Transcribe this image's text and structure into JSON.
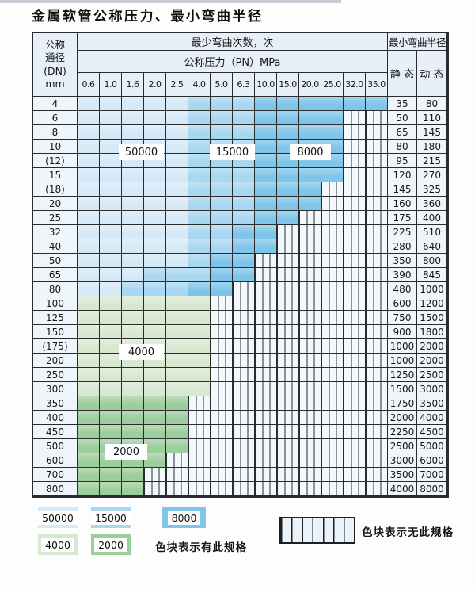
{
  "title": "金属软管公称压力、最小弯曲半径",
  "table": {
    "header": {
      "dn_lines": [
        "公称",
        "通径",
        "(DN)",
        "mm"
      ],
      "cycles": "最少弯曲次数，次",
      "radius": "最小弯曲半径",
      "pn": "公称压力（PN）MPa",
      "static": "静 态",
      "dynamic": "动 态",
      "pressures": [
        "0.6",
        "1.0",
        "1.6",
        "2.0",
        "2.5",
        "4.0",
        "5.0",
        "6.3",
        "10.0",
        "15.0",
        "20.0",
        "25.0",
        "32.0",
        "35.0"
      ]
    },
    "rows": [
      {
        "dn": "4",
        "spec": [
          {
            "cycles": "50000",
            "n": 5
          },
          {
            "cycles": "15000",
            "n": 3
          },
          {
            "cycles": "8000",
            "n": 6
          }
        ],
        "static": "35",
        "dynamic": "80"
      },
      {
        "dn": "6",
        "spec": [
          {
            "cycles": "50000",
            "n": 5
          },
          {
            "cycles": "15000",
            "n": 3
          },
          {
            "cycles": "8000",
            "n": 4
          }
        ],
        "static": "50",
        "dynamic": "110"
      },
      {
        "dn": "8",
        "spec": [
          {
            "cycles": "50000",
            "n": 5
          },
          {
            "cycles": "15000",
            "n": 3
          },
          {
            "cycles": "8000",
            "n": 4
          }
        ],
        "static": "65",
        "dynamic": "145"
      },
      {
        "dn": "10",
        "spec": [
          {
            "cycles": "50000",
            "n": 5
          },
          {
            "cycles": "15000",
            "n": 3
          },
          {
            "cycles": "8000",
            "n": 4
          }
        ],
        "static": "80",
        "dynamic": "180"
      },
      {
        "dn": "(12)",
        "spec": [
          {
            "cycles": "50000",
            "n": 5
          },
          {
            "cycles": "15000",
            "n": 3
          },
          {
            "cycles": "8000",
            "n": 4
          }
        ],
        "static": "95",
        "dynamic": "215"
      },
      {
        "dn": "15",
        "spec": [
          {
            "cycles": "50000",
            "n": 5
          },
          {
            "cycles": "15000",
            "n": 3
          },
          {
            "cycles": "8000",
            "n": 4
          }
        ],
        "static": "120",
        "dynamic": "270"
      },
      {
        "dn": "(18)",
        "spec": [
          {
            "cycles": "50000",
            "n": 5
          },
          {
            "cycles": "15000",
            "n": 3
          },
          {
            "cycles": "8000",
            "n": 3
          }
        ],
        "static": "145",
        "dynamic": "325"
      },
      {
        "dn": "20",
        "spec": [
          {
            "cycles": "50000",
            "n": 5
          },
          {
            "cycles": "15000",
            "n": 3
          },
          {
            "cycles": "8000",
            "n": 3
          }
        ],
        "static": "160",
        "dynamic": "360"
      },
      {
        "dn": "25",
        "spec": [
          {
            "cycles": "50000",
            "n": 5
          },
          {
            "cycles": "15000",
            "n": 3
          },
          {
            "cycles": "8000",
            "n": 2
          }
        ],
        "static": "175",
        "dynamic": "400"
      },
      {
        "dn": "32",
        "spec": [
          {
            "cycles": "50000",
            "n": 5
          },
          {
            "cycles": "15000",
            "n": 2
          },
          {
            "cycles": "8000",
            "n": 2
          }
        ],
        "static": "225",
        "dynamic": "510"
      },
      {
        "dn": "40",
        "spec": [
          {
            "cycles": "50000",
            "n": 5
          },
          {
            "cycles": "15000",
            "n": 2
          },
          {
            "cycles": "8000",
            "n": 2
          }
        ],
        "static": "280",
        "dynamic": "640"
      },
      {
        "dn": "50",
        "spec": [
          {
            "cycles": "50000",
            "n": 5
          },
          {
            "cycles": "15000",
            "n": 1
          },
          {
            "cycles": "8000",
            "n": 2
          }
        ],
        "static": "350",
        "dynamic": "800"
      },
      {
        "dn": "65",
        "spec": [
          {
            "cycles": "50000",
            "n": 3
          },
          {
            "cycles": "15000",
            "n": 3
          },
          {
            "cycles": "8000",
            "n": 2
          }
        ],
        "static": "390",
        "dynamic": "845"
      },
      {
        "dn": "80",
        "spec": [
          {
            "cycles": "50000",
            "n": 2
          },
          {
            "cycles": "15000",
            "n": 3
          },
          {
            "cycles": "8000",
            "n": 2
          }
        ],
        "static": "480",
        "dynamic": "1000"
      },
      {
        "dn": "100",
        "spec": [
          {
            "cycles": "4000",
            "n": 6
          }
        ],
        "static": "600",
        "dynamic": "1200"
      },
      {
        "dn": "125",
        "spec": [
          {
            "cycles": "4000",
            "n": 6
          }
        ],
        "static": "750",
        "dynamic": "1500"
      },
      {
        "dn": "150",
        "spec": [
          {
            "cycles": "4000",
            "n": 6
          }
        ],
        "static": "900",
        "dynamic": "1800"
      },
      {
        "dn": "(175)",
        "spec": [
          {
            "cycles": "4000",
            "n": 6
          }
        ],
        "static": "1000",
        "dynamic": "2000"
      },
      {
        "dn": "200",
        "spec": [
          {
            "cycles": "4000",
            "n": 6
          }
        ],
        "static": "1000",
        "dynamic": "2000"
      },
      {
        "dn": "250",
        "spec": [
          {
            "cycles": "4000",
            "n": 6
          }
        ],
        "static": "1250",
        "dynamic": "2500"
      },
      {
        "dn": "300",
        "spec": [
          {
            "cycles": "4000",
            "n": 6
          }
        ],
        "static": "1500",
        "dynamic": "3000"
      },
      {
        "dn": "350",
        "spec": [
          {
            "cycles": "2000",
            "n": 5
          }
        ],
        "static": "1750",
        "dynamic": "3500"
      },
      {
        "dn": "400",
        "spec": [
          {
            "cycles": "2000",
            "n": 5
          }
        ],
        "static": "2000",
        "dynamic": "4000"
      },
      {
        "dn": "450",
        "spec": [
          {
            "cycles": "2000",
            "n": 5
          }
        ],
        "static": "2250",
        "dynamic": "4500"
      },
      {
        "dn": "500",
        "spec": [
          {
            "cycles": "2000",
            "n": 5
          }
        ],
        "static": "2500",
        "dynamic": "5000"
      },
      {
        "dn": "600",
        "spec": [
          {
            "cycles": "2000",
            "n": 4
          }
        ],
        "static": "3000",
        "dynamic": "6000"
      },
      {
        "dn": "700",
        "spec": [
          {
            "cycles": "2000",
            "n": 3
          }
        ],
        "static": "3500",
        "dynamic": "7000"
      },
      {
        "dn": "800",
        "spec": [
          {
            "cycles": "2000",
            "n": 3
          }
        ],
        "static": "4000",
        "dynamic": "8000"
      }
    ]
  },
  "overlays": {
    "v50000": "50000",
    "v15000": "15000",
    "v8000": "8000",
    "v4000": "4000",
    "v2000": "2000"
  },
  "legend": {
    "cycles": [
      "50000",
      "15000",
      "8000",
      "4000",
      "2000"
    ],
    "has_spec": "色块表示有此规格",
    "no_spec": "色块表示无此规格"
  },
  "colors": {
    "cycles": {
      "50000": "#d6e9f7",
      "15000": "#a9d6f1",
      "8000": "#7fc5ea",
      "4000": "#d7e8d1",
      "2000": "#9ccd9d"
    },
    "grid_line": "#2b2b2b",
    "header_bg": "#e7f0f8",
    "label_bg": "#eef5fb",
    "hatch_bg": "#f3f8fd",
    "top_strip": "#c6cdd5"
  }
}
